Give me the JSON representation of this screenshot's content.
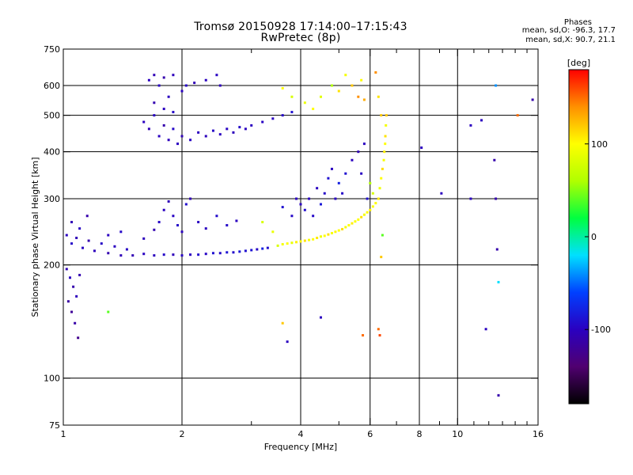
{
  "header": {
    "title_line1": "Tromsø 20150928 17:14:00–17:15:43",
    "title_line2": "RwPretec (8p)",
    "phases_heading": "Phases",
    "phases_o": "mean, sd,O: -96.3, 17.7",
    "phases_x": "mean, sd,X:  90.7, 21.1"
  },
  "colors": {
    "background": "#ffffff",
    "grid": "#000000",
    "axis": "#000000"
  },
  "chart_data": {
    "type": "scatter",
    "title": "Tromsø 20150928 17:14:00–17:15:43",
    "subtitle": "RwPretec (8p)",
    "xlabel": "Frequency [MHz]",
    "ylabel": "Stationary phase Virtual Height [km]",
    "x_scale": "log",
    "y_scale": "log",
    "xlim": [
      1,
      16
    ],
    "ylim": [
      75,
      750
    ],
    "x_ticks": [
      1,
      2,
      4,
      6,
      8,
      10,
      16
    ],
    "x_tick_labels": [
      "1",
      "2",
      "4",
      "6",
      "8",
      "10",
      "16"
    ],
    "x_grid": [
      2,
      4,
      6,
      8,
      10
    ],
    "x_minor_ticks": [
      3,
      5,
      7,
      9,
      11,
      12,
      13,
      14,
      15
    ],
    "y_ticks": [
      75,
      100,
      200,
      300,
      400,
      500,
      600,
      750
    ],
    "y_tick_labels": [
      "75",
      "100",
      "200",
      "300",
      "400",
      "500",
      "600",
      "750"
    ],
    "y_grid": [
      100,
      200,
      300,
      400,
      500,
      600
    ],
    "grid": true,
    "colorbar": {
      "label": "[deg]",
      "ticks": [
        100,
        0,
        -100
      ],
      "tick_labels": [
        "100",
        "0",
        "-100"
      ],
      "range": [
        -180,
        180
      ],
      "stops": [
        "#000000",
        "#500070",
        "#2a00c0",
        "#0040ff",
        "#00e0ff",
        "#00ff40",
        "#b0ff00",
        "#ffff00",
        "#ff9000",
        "#ff0000"
      ]
    },
    "series": [
      {
        "points": [
          [
            1.02,
            240,
            -100
          ],
          [
            1.05,
            228,
            -95
          ],
          [
            1.08,
            236,
            -105
          ],
          [
            1.12,
            222,
            -98
          ],
          [
            1.16,
            232,
            -110
          ],
          [
            1.2,
            218,
            -102
          ],
          [
            1.25,
            228,
            -96
          ],
          [
            1.3,
            215,
            -108
          ],
          [
            1.35,
            224,
            -100
          ],
          [
            1.4,
            212,
            -104
          ],
          [
            1.45,
            220,
            -97
          ],
          [
            1.5,
            212,
            -106
          ],
          [
            1.6,
            214,
            -99
          ],
          [
            1.7,
            212,
            -101
          ],
          [
            1.8,
            213,
            -95
          ],
          [
            1.9,
            213,
            -103
          ],
          [
            2.0,
            212,
            -98
          ],
          [
            2.1,
            213,
            -100
          ],
          [
            2.2,
            213,
            -92
          ],
          [
            2.3,
            214,
            -97
          ],
          [
            2.4,
            215,
            -90
          ],
          [
            2.5,
            215,
            -95
          ],
          [
            2.6,
            216,
            -88
          ],
          [
            2.7,
            216,
            -93
          ],
          [
            2.8,
            217,
            -85
          ],
          [
            2.9,
            218,
            -90
          ],
          [
            3.0,
            219,
            -88
          ],
          [
            3.1,
            220,
            -96
          ],
          [
            3.2,
            221,
            -80
          ],
          [
            3.3,
            222,
            -92
          ],
          [
            3.5,
            225,
            80
          ],
          [
            3.6,
            227,
            95
          ],
          [
            3.7,
            228,
            100
          ],
          [
            3.8,
            229,
            88
          ],
          [
            3.9,
            230,
            105
          ],
          [
            4.0,
            231,
            100
          ],
          [
            4.1,
            232,
            110
          ],
          [
            4.2,
            233,
            95
          ],
          [
            4.3,
            234,
            100
          ],
          [
            4.4,
            236,
            108
          ],
          [
            4.5,
            238,
            92
          ],
          [
            4.6,
            239,
            100
          ],
          [
            4.7,
            241,
            110
          ],
          [
            4.8,
            243,
            96
          ],
          [
            4.9,
            245,
            102
          ],
          [
            5.0,
            247,
            100
          ],
          [
            5.1,
            249,
            112
          ],
          [
            5.2,
            252,
            95
          ],
          [
            5.3,
            255,
            100
          ],
          [
            5.4,
            258,
            105
          ],
          [
            5.5,
            261,
            98
          ],
          [
            5.6,
            264,
            100
          ],
          [
            5.7,
            268,
            110
          ],
          [
            5.8,
            272,
            95
          ],
          [
            5.9,
            276,
            100
          ],
          [
            6.0,
            280,
            104
          ],
          [
            6.1,
            286,
            98
          ],
          [
            6.2,
            292,
            100
          ],
          [
            6.3,
            300,
            108
          ],
          [
            6.35,
            320,
            92
          ],
          [
            6.4,
            340,
            100
          ],
          [
            6.45,
            360,
            112
          ],
          [
            6.5,
            380,
            96
          ],
          [
            6.52,
            400,
            105
          ],
          [
            6.55,
            420,
            100
          ],
          [
            6.56,
            440,
            110
          ],
          [
            6.58,
            470,
            95
          ],
          [
            6.6,
            500,
            120
          ],
          [
            1.05,
            260,
            -105
          ],
          [
            1.1,
            250,
            -98
          ],
          [
            1.15,
            270,
            -110
          ],
          [
            1.3,
            240,
            -100
          ],
          [
            1.4,
            245,
            -95
          ],
          [
            1.6,
            235,
            -102
          ],
          [
            1.7,
            248,
            -108
          ],
          [
            1.75,
            260,
            -96
          ],
          [
            1.8,
            280,
            -100
          ],
          [
            1.85,
            295,
            -104
          ],
          [
            1.9,
            270,
            -98
          ],
          [
            1.95,
            255,
            -95
          ],
          [
            2.0,
            245,
            -100
          ],
          [
            2.05,
            290,
            -92
          ],
          [
            2.1,
            300,
            -106
          ],
          [
            2.2,
            260,
            -99
          ],
          [
            2.3,
            250,
            -100
          ],
          [
            2.45,
            270,
            -93
          ],
          [
            2.6,
            255,
            -95
          ],
          [
            2.75,
            262,
            -100
          ],
          [
            3.2,
            260,
            80
          ],
          [
            3.4,
            245,
            90
          ],
          [
            3.6,
            285,
            -90
          ],
          [
            3.8,
            270,
            -95
          ],
          [
            3.9,
            300,
            -100
          ],
          [
            4.0,
            290,
            -100
          ],
          [
            4.1,
            280,
            -92
          ],
          [
            4.2,
            300,
            -100
          ],
          [
            4.3,
            270,
            -95
          ],
          [
            4.4,
            320,
            -100
          ],
          [
            4.5,
            290,
            -85
          ],
          [
            4.6,
            310,
            -95
          ],
          [
            4.7,
            340,
            -90
          ],
          [
            4.8,
            360,
            -100
          ],
          [
            4.9,
            300,
            -98
          ],
          [
            5.0,
            330,
            -80
          ],
          [
            5.1,
            310,
            -95
          ],
          [
            5.2,
            350,
            -90
          ],
          [
            5.4,
            380,
            -100
          ],
          [
            5.6,
            400,
            -105
          ],
          [
            5.7,
            350,
            -98
          ],
          [
            5.8,
            420,
            -100
          ],
          [
            5.9,
            300,
            -90
          ],
          [
            6.0,
            330,
            60
          ],
          [
            6.1,
            310,
            80
          ],
          [
            1.02,
            195,
            -105
          ],
          [
            1.04,
            185,
            -100
          ],
          [
            1.06,
            175,
            -110
          ],
          [
            1.08,
            165,
            -102
          ],
          [
            1.1,
            188,
            -108
          ],
          [
            1.03,
            160,
            -115
          ],
          [
            1.05,
            150,
            -120
          ],
          [
            1.07,
            140,
            -112
          ],
          [
            1.09,
            128,
            -125
          ],
          [
            1.6,
            480,
            -100
          ],
          [
            1.65,
            460,
            -105
          ],
          [
            1.7,
            500,
            -98
          ],
          [
            1.75,
            440,
            -100
          ],
          [
            1.8,
            470,
            -110
          ],
          [
            1.85,
            430,
            -102
          ],
          [
            1.9,
            460,
            -95
          ],
          [
            1.95,
            420,
            -100
          ],
          [
            2.0,
            440,
            -105
          ],
          [
            2.1,
            430,
            -98
          ],
          [
            2.2,
            450,
            -100
          ],
          [
            2.3,
            440,
            -102
          ],
          [
            2.4,
            455,
            -96
          ],
          [
            2.5,
            445,
            -100
          ],
          [
            2.6,
            460,
            -98
          ],
          [
            2.7,
            450,
            -102
          ],
          [
            2.8,
            465,
            -95
          ],
          [
            2.9,
            460,
            -100
          ],
          [
            3.0,
            470,
            -100
          ],
          [
            3.2,
            480,
            -98
          ],
          [
            3.4,
            490,
            -100
          ],
          [
            3.6,
            500,
            -95
          ],
          [
            3.8,
            510,
            -90
          ],
          [
            1.65,
            620,
            -100
          ],
          [
            1.7,
            640,
            -105
          ],
          [
            1.75,
            600,
            -98
          ],
          [
            1.8,
            630,
            -110
          ],
          [
            1.85,
            560,
            -100
          ],
          [
            1.9,
            640,
            -102
          ],
          [
            2.0,
            580,
            -100
          ],
          [
            2.05,
            600,
            -96
          ],
          [
            2.15,
            610,
            -105
          ],
          [
            2.3,
            620,
            -100
          ],
          [
            2.45,
            640,
            -98
          ],
          [
            2.5,
            600,
            -102
          ],
          [
            1.7,
            540,
            -108
          ],
          [
            1.8,
            520,
            -100
          ],
          [
            1.9,
            510,
            -95
          ],
          [
            3.6,
            590,
            100
          ],
          [
            3.8,
            560,
            80
          ],
          [
            4.1,
            540,
            90
          ],
          [
            4.3,
            520,
            100
          ],
          [
            4.5,
            560,
            85
          ],
          [
            4.8,
            600,
            60
          ],
          [
            5.0,
            580,
            110
          ],
          [
            5.2,
            640,
            95
          ],
          [
            5.4,
            600,
            120
          ],
          [
            5.6,
            560,
            140
          ],
          [
            5.7,
            620,
            100
          ],
          [
            5.8,
            550,
            130
          ],
          [
            6.2,
            650,
            140
          ],
          [
            6.3,
            560,
            110
          ],
          [
            6.4,
            500,
            120
          ],
          [
            5.75,
            130,
            150
          ],
          [
            6.3,
            135,
            150
          ],
          [
            6.35,
            130,
            160
          ],
          [
            6.4,
            210,
            120
          ],
          [
            6.45,
            240,
            40
          ],
          [
            1.3,
            150,
            40
          ],
          [
            3.6,
            140,
            120
          ],
          [
            3.7,
            125,
            -100
          ],
          [
            4.5,
            145,
            -100
          ],
          [
            8.1,
            410,
            -100
          ],
          [
            9.1,
            310,
            -100
          ],
          [
            10.8,
            300,
            -100
          ],
          [
            11.5,
            485,
            -100
          ],
          [
            11.8,
            135,
            -100
          ],
          [
            12.4,
            380,
            -110
          ],
          [
            12.5,
            300,
            -110
          ],
          [
            12.6,
            220,
            -110
          ],
          [
            12.7,
            180,
            -20
          ],
          [
            12.7,
            90,
            -110
          ],
          [
            14.2,
            500,
            150
          ],
          [
            15.5,
            550,
            -110
          ],
          [
            12.5,
            600,
            -40
          ],
          [
            10.8,
            470,
            -100
          ]
        ]
      }
    ]
  }
}
